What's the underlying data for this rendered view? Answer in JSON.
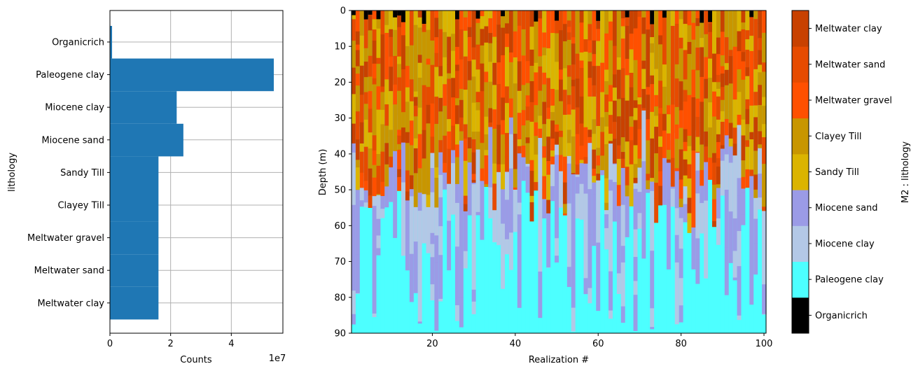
{
  "chart_data": [
    {
      "type": "bar",
      "orientation": "horizontal",
      "title": "",
      "xlabel": "Counts",
      "ylabel": "lithology",
      "offset_label": "1e7",
      "xlim": [
        0,
        5.7
      ],
      "xticks": [
        0,
        2,
        4
      ],
      "grid": true,
      "bar_color": "#1f77b4",
      "categories": [
        "Organicrich",
        "Paleogene clay",
        "Miocene clay",
        "Miocene sand",
        "Sandy Till",
        "Clayey Till",
        "Meltwater gravel",
        "Meltwater sand",
        "Meltwater clay"
      ],
      "values": [
        0.07,
        5.4,
        2.2,
        2.42,
        1.6,
        1.6,
        1.6,
        1.6,
        1.6
      ]
    },
    {
      "type": "heatmap",
      "title": "",
      "xlabel": "Realization #",
      "ylabel": "Depth (m)",
      "xlim": [
        0.5,
        100.5
      ],
      "ylim": [
        90,
        0
      ],
      "xticks": [
        20,
        40,
        60,
        80,
        100
      ],
      "yticks": [
        0,
        10,
        20,
        30,
        40,
        50,
        60,
        70,
        80,
        90
      ],
      "n_realizations": 100,
      "colorbar": {
        "label": "M2 : lithology",
        "classes": [
          {
            "name": "Organicrich",
            "color": "#000000"
          },
          {
            "name": "Paleogene clay",
            "color": "#4dffff"
          },
          {
            "name": "Miocene clay",
            "color": "#b3c8e6"
          },
          {
            "name": "Miocene sand",
            "color": "#9b9be6"
          },
          {
            "name": "Sandy Till",
            "color": "#dbb400"
          },
          {
            "name": "Clayey Till",
            "color": "#c89600"
          },
          {
            "name": "Meltwater gravel",
            "color": "#ff5000"
          },
          {
            "name": "Meltwater sand",
            "color": "#e64b00"
          },
          {
            "name": "Meltwater clay",
            "color": "#c84100"
          }
        ]
      }
    }
  ]
}
